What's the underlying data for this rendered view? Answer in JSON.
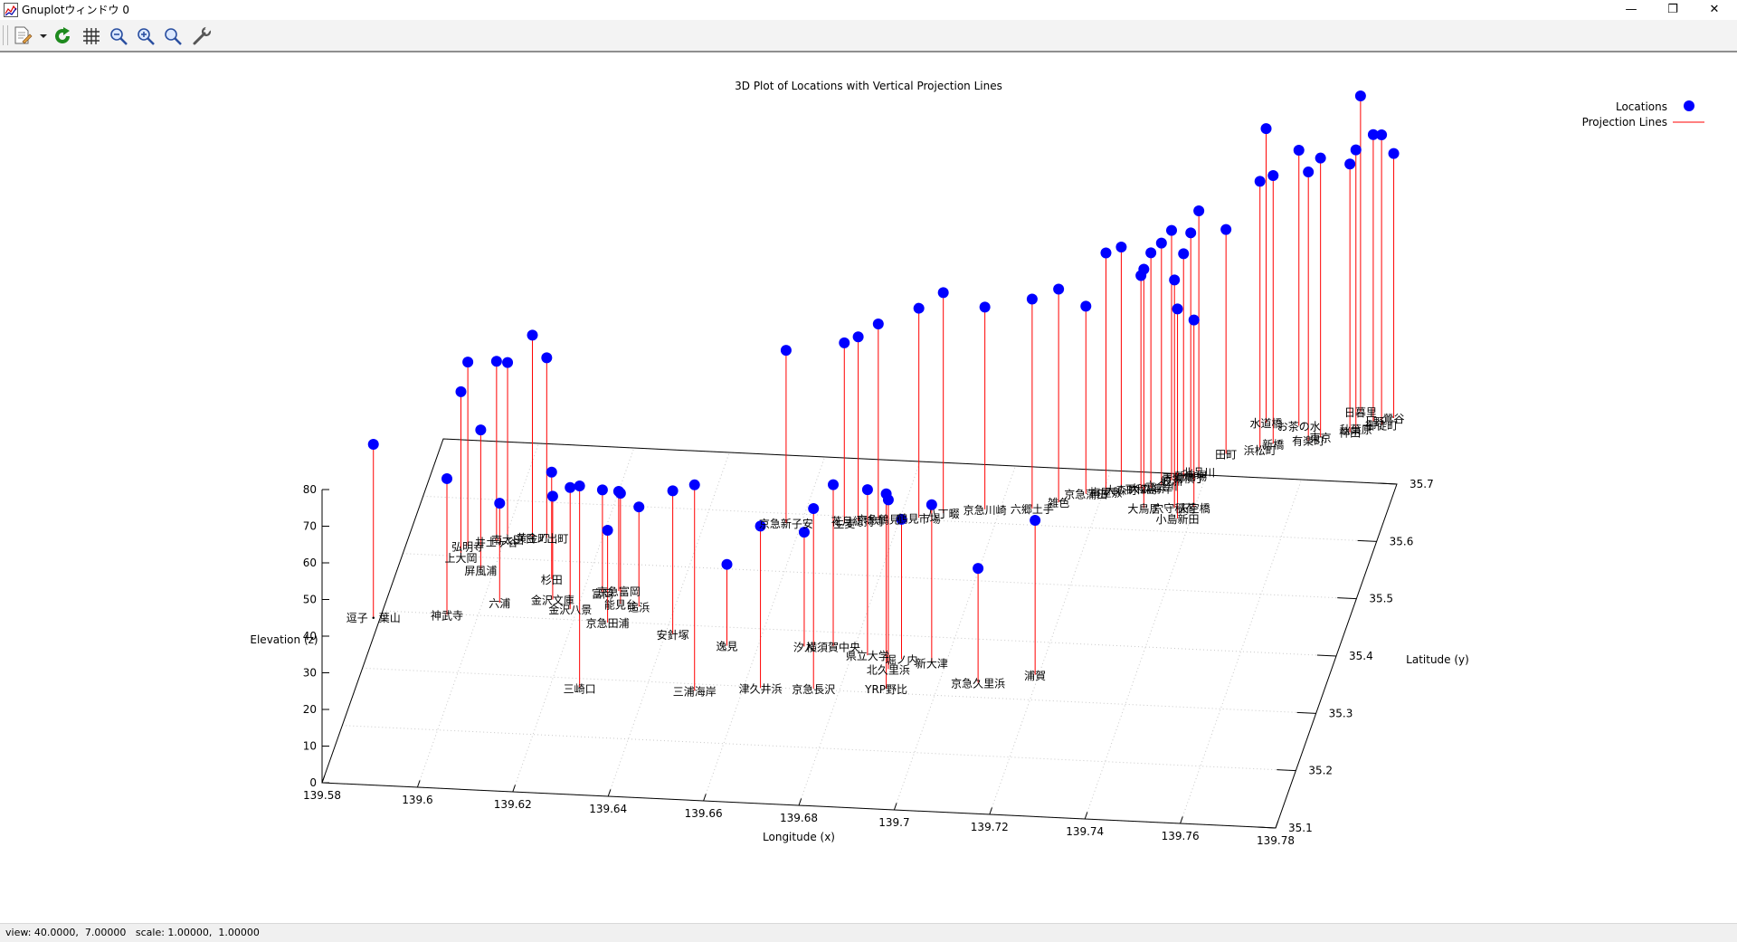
{
  "window": {
    "title": "Gnuplotウィンドウ 0",
    "minimize_glyph": "—",
    "restore_glyph": "❐",
    "close_glyph": "✕"
  },
  "toolbar": {
    "items": [
      "copy-to-clipboard",
      "replot",
      "grid",
      "zoom-previous",
      "zoom-next",
      "autoscale",
      "options"
    ]
  },
  "status": {
    "text": "view: 40.0000,  7.00000   scale: 1.00000,  1.00000"
  },
  "colors": {
    "points": "#0000ff",
    "projection": "#ff0000",
    "axes": "#000000",
    "grid": "#c8c8c8"
  },
  "chart_data": {
    "type": "scatter",
    "title": "3D Plot of Locations with Vertical Projection Lines",
    "xlabel": "Longitude (x)",
    "ylabel": "Latitude (y)",
    "zlabel": "Elevation (z)",
    "xlim": [
      139.58,
      139.78
    ],
    "ylim": [
      35.1,
      35.7
    ],
    "zlim": [
      0,
      80
    ],
    "xticks": [
      "139.58",
      "139.6",
      "139.62",
      "139.64",
      "139.66",
      "139.68",
      "139.7",
      "139.72",
      "139.74",
      "139.76",
      "139.78"
    ],
    "yticks": [
      "35.1",
      "35.2",
      "35.3",
      "35.4",
      "35.5",
      "35.6",
      "35.7"
    ],
    "zticks": [
      "0",
      "10",
      "20",
      "30",
      "40",
      "50",
      "60",
      "70",
      "80"
    ],
    "grid": true,
    "legend_position": "top-right",
    "view": {
      "rot_x": 40,
      "rot_z": 7
    },
    "legend": [
      "Locations",
      "Projection Lines"
    ],
    "points": [
      {
        "name": "逗子・葉山",
        "x": 139.5825,
        "y": 35.295,
        "z": 42
      },
      {
        "name": "神武寺",
        "x": 139.5975,
        "y": 35.305,
        "z": 32
      },
      {
        "name": "上大岡",
        "x": 139.5962,
        "y": 35.405,
        "z": 40
      },
      {
        "name": "弘明寺",
        "x": 139.5968,
        "y": 35.425,
        "z": 45
      },
      {
        "name": "井土ヶ谷",
        "x": 139.6024,
        "y": 35.435,
        "z": 44
      },
      {
        "name": "屏風浦",
        "x": 139.6012,
        "y": 35.385,
        "z": 33
      },
      {
        "name": "六浦",
        "x": 139.6075,
        "y": 35.33,
        "z": 22
      },
      {
        "name": "南太田",
        "x": 139.6045,
        "y": 35.44,
        "z": 43
      },
      {
        "name": "黄金町",
        "x": 139.6095,
        "y": 35.445,
        "z": 50
      },
      {
        "name": "日ノ出町",
        "x": 139.6125,
        "y": 35.445,
        "z": 44
      },
      {
        "name": "杉田",
        "x": 139.6165,
        "y": 35.375,
        "z": 24
      },
      {
        "name": "金沢文庫",
        "x": 139.6182,
        "y": 35.34,
        "z": 23
      },
      {
        "name": "金沢八景",
        "x": 139.6225,
        "y": 35.325,
        "z": 28
      },
      {
        "name": "富岡",
        "x": 139.628,
        "y": 35.355,
        "z": 23
      },
      {
        "name": "京急富岡",
        "x": 139.6312,
        "y": 35.36,
        "z": 22
      },
      {
        "name": "能見台",
        "x": 139.6325,
        "y": 35.338,
        "z": 25
      },
      {
        "name": "追浜",
        "x": 139.6365,
        "y": 35.335,
        "z": 22
      },
      {
        "name": "京急田浦",
        "x": 139.6312,
        "y": 35.305,
        "z": 20
      },
      {
        "name": "安針塚",
        "x": 139.6455,
        "y": 35.29,
        "z": 34
      },
      {
        "name": "逸見",
        "x": 139.6575,
        "y": 35.275,
        "z": 17
      },
      {
        "name": "汐入",
        "x": 139.6735,
        "y": 35.28,
        "z": 26
      },
      {
        "name": "横須賀中央",
        "x": 139.6795,
        "y": 35.282,
        "z": 39
      },
      {
        "name": "県立大学",
        "x": 139.6872,
        "y": 35.27,
        "z": 40
      },
      {
        "name": "堀ノ内",
        "x": 139.6945,
        "y": 35.266,
        "z": 33
      },
      {
        "name": "新大津",
        "x": 139.701,
        "y": 35.262,
        "z": 38
      },
      {
        "name": "北久里浜",
        "x": 139.6925,
        "y": 35.248,
        "z": 41
      },
      {
        "name": "京急久里浜",
        "x": 139.712,
        "y": 35.232,
        "z": 26
      },
      {
        "name": "浦賀",
        "x": 139.7232,
        "y": 35.25,
        "z": 37
      },
      {
        "name": "三浦海岸",
        "x": 139.6541,
        "y": 35.195,
        "z": 51
      },
      {
        "name": "三崎口",
        "x": 139.6302,
        "y": 35.19,
        "z": 50
      },
      {
        "name": "津久井浜",
        "x": 139.6675,
        "y": 35.205,
        "z": 39
      },
      {
        "name": "京急長沢",
        "x": 139.6785,
        "y": 35.208,
        "z": 44
      },
      {
        "name": "YRP野比",
        "x": 139.6935,
        "y": 35.214,
        "z": 48
      },
      {
        "name": "京急新子安",
        "x": 139.6608,
        "y": 35.49,
        "z": 42
      },
      {
        "name": "生麦",
        "x": 139.6728,
        "y": 35.495,
        "z": 44
      },
      {
        "name": "花月総持寺",
        "x": 139.6755,
        "y": 35.5,
        "z": 45
      },
      {
        "name": "京急鶴見",
        "x": 139.6795,
        "y": 35.505,
        "z": 48
      },
      {
        "name": "鶴見市場",
        "x": 139.6878,
        "y": 35.51,
        "z": 52
      },
      {
        "name": "八丁畷",
        "x": 139.6925,
        "y": 35.52,
        "z": 55
      },
      {
        "name": "京急川崎",
        "x": 139.7008,
        "y": 35.53,
        "z": 50
      },
      {
        "name": "六郷土手",
        "x": 139.7105,
        "y": 35.535,
        "z": 52
      },
      {
        "name": "雑色",
        "x": 139.7155,
        "y": 35.548,
        "z": 53
      },
      {
        "name": "京急蒲田",
        "x": 139.7205,
        "y": 35.565,
        "z": 46
      },
      {
        "name": "梅屋敷",
        "x": 139.7245,
        "y": 35.57,
        "z": 60
      },
      {
        "name": "大森町",
        "x": 139.7275,
        "y": 35.575,
        "z": 61
      },
      {
        "name": "平和島",
        "x": 139.7315,
        "y": 35.578,
        "z": 53
      },
      {
        "name": "大森海岸",
        "x": 139.7335,
        "y": 35.58,
        "z": 59
      },
      {
        "name": "立会川",
        "x": 139.7355,
        "y": 35.585,
        "z": 61
      },
      {
        "name": "鮫洲",
        "x": 139.7372,
        "y": 35.595,
        "z": 63
      },
      {
        "name": "青物横丁",
        "x": 139.7395,
        "y": 35.6,
        "z": 56
      },
      {
        "name": "新馬場",
        "x": 139.7408,
        "y": 35.605,
        "z": 61
      },
      {
        "name": "北品川",
        "x": 139.7422,
        "y": 35.612,
        "z": 66
      },
      {
        "name": "大鳥居",
        "x": 139.7335,
        "y": 35.545,
        "z": 60
      },
      {
        "name": "穴守稲荷",
        "x": 139.7398,
        "y": 35.548,
        "z": 57
      },
      {
        "name": "天空橋",
        "x": 139.7438,
        "y": 35.55,
        "z": 46
      },
      {
        "name": "小島新田",
        "x": 139.7412,
        "y": 35.53,
        "z": 52
      },
      {
        "name": "田町",
        "x": 139.7465,
        "y": 35.645,
        "z": 56
      },
      {
        "name": "浜松町",
        "x": 139.7532,
        "y": 35.655,
        "z": 68
      },
      {
        "name": "新橋",
        "x": 139.7555,
        "y": 35.666,
        "z": 68
      },
      {
        "name": "水道橋",
        "x": 139.7525,
        "y": 35.702,
        "z": 75
      },
      {
        "name": "お茶の水",
        "x": 139.7595,
        "y": 35.699,
        "z": 70
      },
      {
        "name": "東京",
        "x": 139.7648,
        "y": 35.681,
        "z": 71
      },
      {
        "name": "有楽町",
        "x": 139.7625,
        "y": 35.675,
        "z": 68
      },
      {
        "name": "秋葉原",
        "x": 139.7715,
        "y": 35.698,
        "z": 71
      },
      {
        "name": "上野",
        "x": 139.7745,
        "y": 35.713,
        "z": 73
      },
      {
        "name": "日暮里",
        "x": 139.7712,
        "y": 35.728,
        "z": 81
      },
      {
        "name": "神田",
        "x": 139.7705,
        "y": 35.692,
        "z": 68
      },
      {
        "name": "鶯谷",
        "x": 139.7785,
        "y": 35.72,
        "z": 67
      },
      {
        "name": "御徒町",
        "x": 139.7765,
        "y": 35.707,
        "z": 74
      }
    ]
  }
}
